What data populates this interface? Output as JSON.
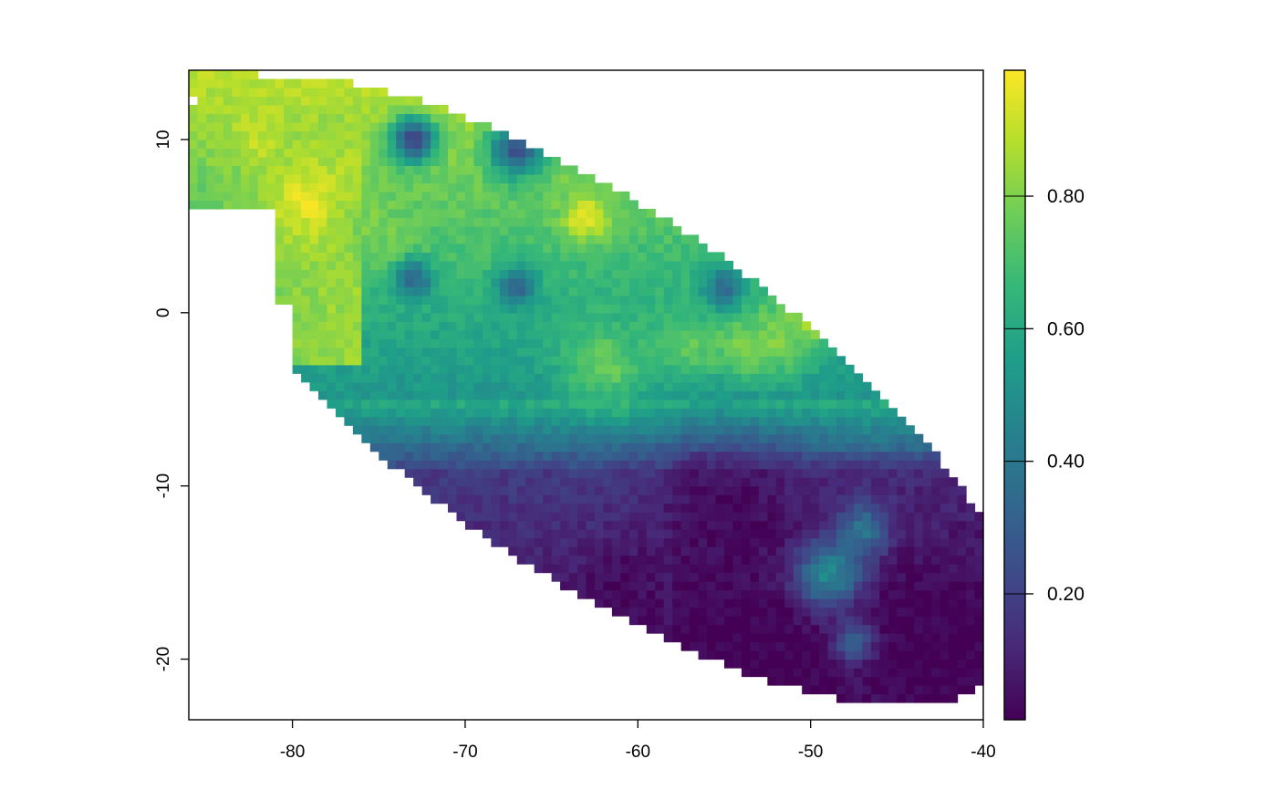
{
  "chart_data": {
    "type": "heatmap",
    "title": "",
    "xlabel": "",
    "ylabel": "",
    "xlim": [
      -86,
      -40
    ],
    "ylim": [
      -23.5,
      14
    ],
    "x_ticks": [
      -80,
      -70,
      -60,
      -50,
      -40
    ],
    "x_tick_labels": [
      "-80",
      "-70",
      "-60",
      "-50",
      "-40"
    ],
    "y_ticks": [
      10,
      0,
      -10,
      -20
    ],
    "y_tick_labels": [
      "10",
      "0",
      "-10",
      "-20"
    ],
    "grid": false,
    "colorbar": {
      "placement": "right",
      "palette": "viridis",
      "range": [
        0.01,
        0.99
      ],
      "ticks": [
        0.2,
        0.4,
        0.6,
        0.8
      ],
      "tick_labels": [
        "0.20",
        "0.40",
        "0.60",
        "0.80"
      ],
      "colors": [
        "#440154",
        "#482878",
        "#3E4A89",
        "#31688E",
        "#26828E",
        "#1F9E89",
        "#35B779",
        "#6DCD59",
        "#B4DE2C",
        "#FDE725"
      ]
    },
    "cell_size_deg": 0.5,
    "domain_ellipse": {
      "center": [
        -62.5,
        -4.5
      ],
      "semi_axes": [
        28.5,
        10.5
      ],
      "rotation_deg": -34
    },
    "features": [
      {
        "x": -63,
        "y": 5.5,
        "value": 0.97,
        "radius": 1.3
      },
      {
        "x": -79,
        "y": 6.5,
        "value": 0.95,
        "radius": 2.4
      },
      {
        "x": -82,
        "y": 10,
        "value": 0.9,
        "radius": 1.6
      },
      {
        "x": -76,
        "y": 5,
        "value": 0.8,
        "radius": 1.6
      },
      {
        "x": -74,
        "y": 4,
        "value": 0.78,
        "radius": 2.0
      },
      {
        "x": -50,
        "y": -0.5,
        "value": 0.9,
        "radius": 1.2
      },
      {
        "x": -52,
        "y": -1.5,
        "value": 0.8,
        "radius": 2.2
      },
      {
        "x": -62,
        "y": -3,
        "value": 0.76,
        "radius": 2.5
      },
      {
        "x": -57,
        "y": -2,
        "value": 0.75,
        "radius": 2.0
      },
      {
        "x": -54,
        "y": -2,
        "value": 0.78,
        "radius": 1.6
      },
      {
        "x": -67,
        "y": 1.5,
        "value": 0.3,
        "radius": 1.1
      },
      {
        "x": -73,
        "y": 2,
        "value": 0.35,
        "radius": 1.2
      },
      {
        "x": -55,
        "y": 1.5,
        "value": 0.35,
        "radius": 1.2
      },
      {
        "x": -73,
        "y": 10,
        "value": 0.2,
        "radius": 1.3
      },
      {
        "x": -67,
        "y": 9.5,
        "value": 0.25,
        "radius": 1.6
      },
      {
        "x": -49,
        "y": -15,
        "value": 0.5,
        "radius": 2.0
      },
      {
        "x": -47,
        "y": -12.5,
        "value": 0.4,
        "radius": 1.5
      },
      {
        "x": -47.5,
        "y": -19,
        "value": 0.3,
        "radius": 1.3
      },
      {
        "x": -47,
        "y": -22,
        "value": 0.05,
        "radius": 1.4
      },
      {
        "x": -55,
        "y": -12,
        "value": 0.03,
        "radius": 4.0
      },
      {
        "x": -61,
        "y": -16,
        "value": 0.03,
        "radius": 2.5
      }
    ]
  }
}
